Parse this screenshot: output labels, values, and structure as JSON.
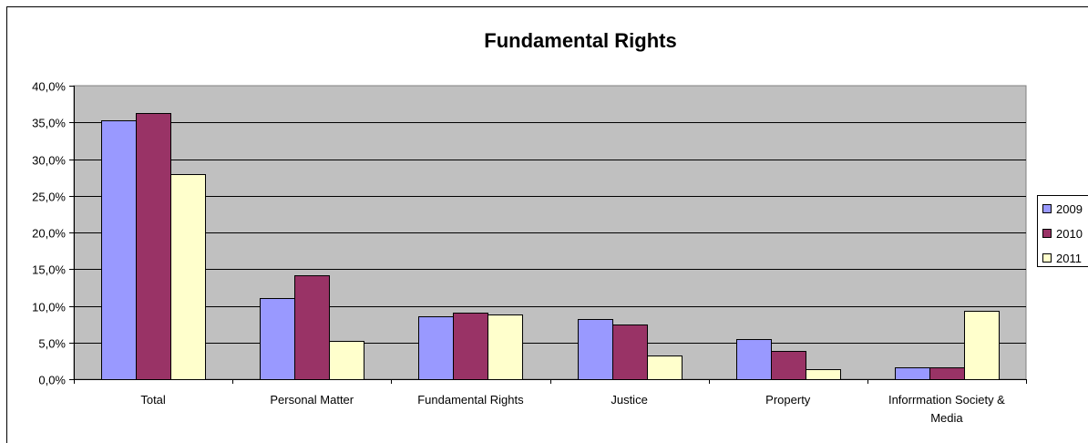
{
  "chart_data": {
    "type": "bar",
    "title": "Fundamental Rights",
    "categories": [
      "Total",
      "Personal Matter",
      "Fundamental Rights",
      "Justice",
      "Property",
      "Inforrmation Society & Media"
    ],
    "series": [
      {
        "name": "2009",
        "color": "#9999ff",
        "values": [
          35.3,
          11.1,
          8.6,
          8.2,
          5.5,
          1.6
        ]
      },
      {
        "name": "2010",
        "color": "#993366",
        "values": [
          36.3,
          14.2,
          9.1,
          7.5,
          3.8,
          1.6
        ]
      },
      {
        "name": "2011",
        "color": "#ffffcc",
        "values": [
          28.0,
          5.2,
          8.8,
          3.2,
          1.4,
          9.3
        ]
      }
    ],
    "ylim": [
      0,
      40
    ],
    "yticks": [
      "0,0%",
      "5,0%",
      "10,0%",
      "15,0%",
      "20,0%",
      "25,0%",
      "30,0%",
      "35,0%",
      "40,0%"
    ],
    "ytick_values": [
      0,
      5,
      10,
      15,
      20,
      25,
      30,
      35,
      40
    ],
    "plot_background": "#c0c0c0",
    "grid": true,
    "legend_position": "right"
  }
}
